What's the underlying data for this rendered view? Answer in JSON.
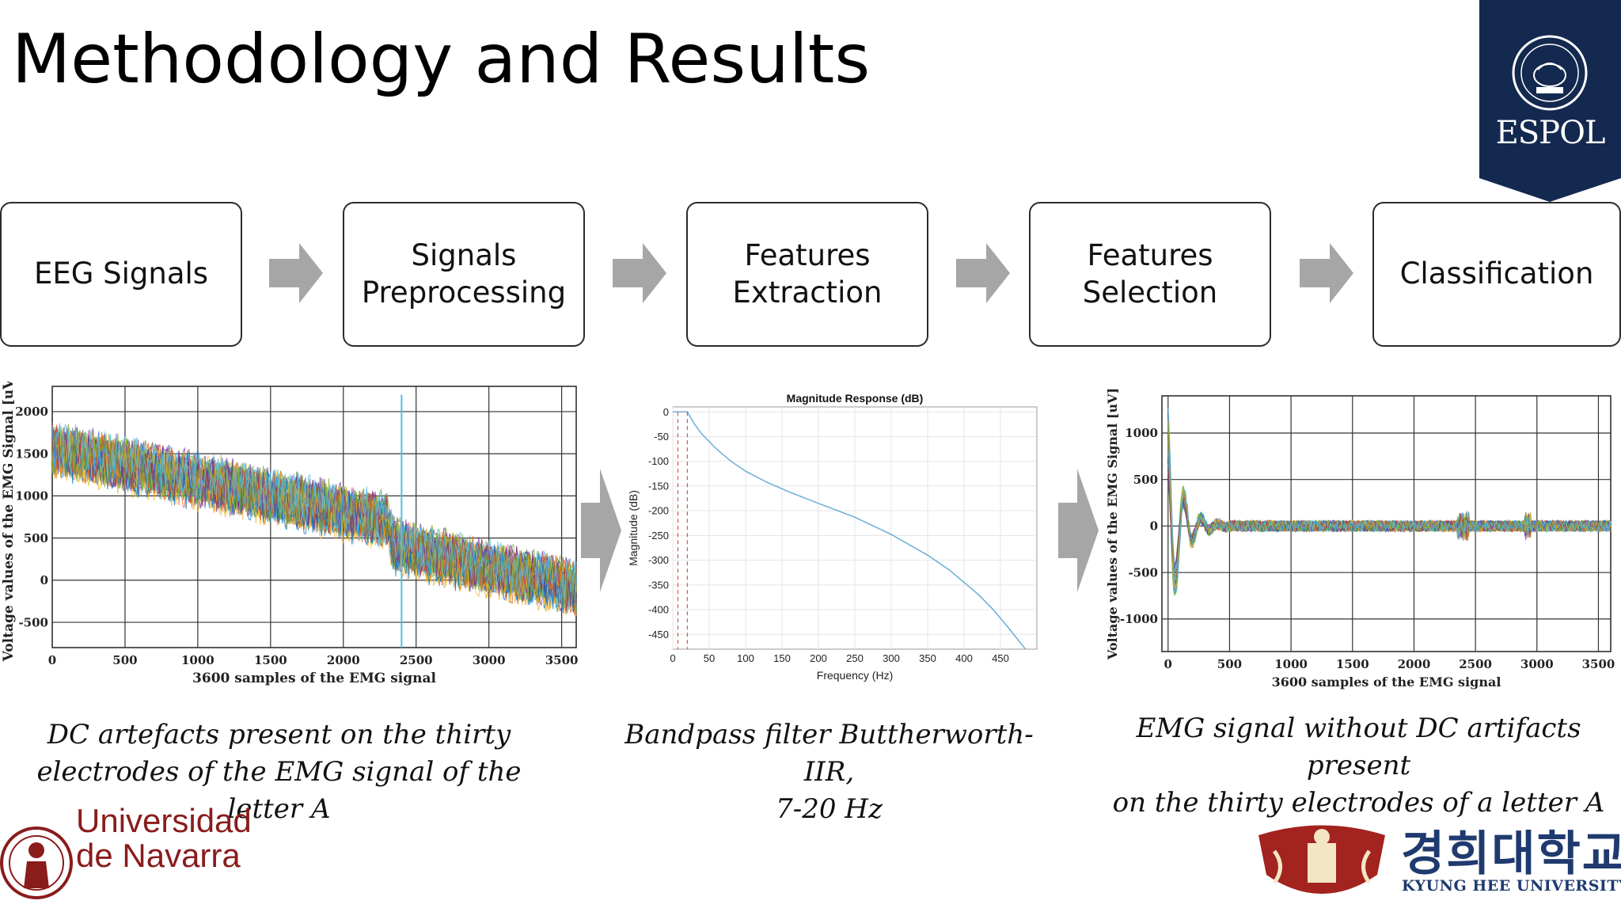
{
  "slide": {
    "title": "Methodology and Results"
  },
  "logos": {
    "espol": "ESPOL",
    "navarra": "Universidad\nde Navarra",
    "kyunghee_korean": "경희대학교",
    "kyunghee_english": "KYUNG HEE UNIVERSITY"
  },
  "pipeline": {
    "steps": [
      {
        "label": "EEG Signals",
        "active": true
      },
      {
        "label": "Signals\nPreprocessing",
        "active": true
      },
      {
        "label": "Features\nExtraction",
        "active": false
      },
      {
        "label": "Features\nSelection",
        "active": false
      },
      {
        "label": "Classification",
        "active": false
      }
    ],
    "active_color": "#00b0ec",
    "arrow_color": "#a6a6a6"
  },
  "captions": {
    "left": "DC artefacts present on the thirty\nelectrodes of the EMG signal of the letter A",
    "middle": "Bandpass filter Buttherworth-IIR,\n7-20 Hz",
    "right": "EMG signal without DC artifacts present\non the thirty electrodes of a letter A"
  },
  "chart_data": [
    {
      "type": "line",
      "title": "",
      "xlabel": "3600 samples of the EMG signal",
      "ylabel": "Voltage values of the EMG Signal [uV]",
      "xlim": [
        0,
        3600
      ],
      "ylim": [
        -800,
        2300
      ],
      "xticks": [
        0,
        500,
        1000,
        1500,
        2000,
        2500,
        3000,
        3500
      ],
      "yticks": [
        -500,
        0,
        500,
        1000,
        1500,
        2000
      ],
      "grid": true,
      "series_count": 30,
      "series_colors": [
        "#0072bd",
        "#d95319",
        "#edb120",
        "#7e2f8e",
        "#77ac30",
        "#4dbeee"
      ],
      "trend": {
        "x": [
          0,
          2300,
          2350,
          3600
        ],
        "y": [
          1550,
          700,
          400,
          -100
        ]
      },
      "noise_amplitude": 420
    },
    {
      "type": "line",
      "title": "Magnitude Response (dB)",
      "xlabel": "Frequency (Hz)",
      "ylabel": "Magnitude (dB)",
      "xlim": [
        0,
        500
      ],
      "ylim": [
        -480,
        10
      ],
      "xticks": [
        0,
        50,
        100,
        150,
        200,
        250,
        300,
        350,
        400,
        450
      ],
      "yticks": [
        0,
        -50,
        -100,
        -150,
        -200,
        -250,
        -300,
        -350,
        -400,
        -450
      ],
      "grid": true,
      "series": [
        {
          "x": [
            0,
            7,
            20,
            22,
            30,
            40,
            60,
            80,
            100,
            130,
            160,
            200,
            250,
            300,
            350,
            380,
            400,
            420,
            440,
            460,
            480,
            490
          ],
          "y": [
            0,
            0,
            0,
            -5,
            -25,
            -45,
            -75,
            -100,
            -120,
            -143,
            -162,
            -185,
            -213,
            -248,
            -290,
            -320,
            -345,
            -370,
            -400,
            -435,
            -472,
            -490
          ]
        }
      ],
      "passband_markers_hz": [
        7,
        20
      ],
      "line_color": "#6aaed6",
      "marker_color": "#e05050"
    },
    {
      "type": "line",
      "title": "",
      "xlabel": "3600 samples of the EMG signal",
      "ylabel": "Voltage values of the EMG Signal [uV]",
      "xlim": [
        -50,
        3600
      ],
      "ylim": [
        -1350,
        1400
      ],
      "xticks": [
        0,
        500,
        1000,
        1500,
        2000,
        2500,
        3000,
        3500
      ],
      "yticks": [
        -1000,
        -500,
        0,
        500,
        1000
      ],
      "grid": true,
      "series_count": 30,
      "series_colors": [
        "#0072bd",
        "#d95319",
        "#edb120",
        "#7e2f8e",
        "#77ac30",
        "#4dbeee"
      ],
      "initial_transient_peak": 1300,
      "steady_amplitude": 60
    }
  ]
}
